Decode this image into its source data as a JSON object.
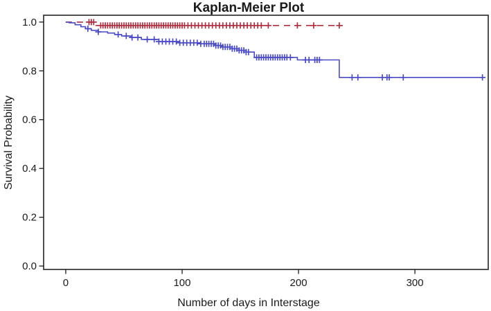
{
  "chart": {
    "title": "Kaplan-Meier Plot",
    "xlabel": "Number of days in Interstage",
    "ylabel": "Survival Probability"
  },
  "chart_data": {
    "type": "line",
    "subtype": "kaplan_meier_step",
    "title": "Kaplan-Meier Plot",
    "xlabel": "Number of days in Interstage",
    "ylabel": "Survival Probability",
    "xlim": [
      -19,
      363
    ],
    "ylim": [
      -0.014,
      1.028
    ],
    "xticks": {
      "values": [
        0,
        100,
        200,
        300
      ],
      "labels": [
        "0",
        "100",
        "200",
        "300"
      ]
    },
    "yticks": {
      "values": [
        0.0,
        0.2,
        0.4,
        0.6,
        0.8,
        1.0
      ],
      "labels": [
        "0.0",
        "0.2",
        "0.4",
        "0.6",
        "0.8",
        "1.0"
      ]
    },
    "grid": false,
    "frame": true,
    "legend": "none",
    "frame_color": "#3c3c3c",
    "text_color": "#1a1a1a",
    "background_color": "#ffffff",
    "series": [
      {
        "name": "upper-red-dashed",
        "color": "#b02c3e",
        "line_style": "dashed",
        "censor_marker": "plus",
        "steps": [
          [
            0,
            1.0
          ],
          [
            26,
            0.986
          ],
          [
            238,
            0.986
          ]
        ],
        "censor_days": [
          20,
          22,
          24,
          30,
          32,
          34,
          36,
          38,
          40,
          42,
          44,
          46,
          48,
          50,
          52,
          54,
          56,
          58,
          60,
          62,
          64,
          66,
          68,
          70,
          72,
          74,
          76,
          78,
          80,
          82,
          84,
          86,
          88,
          90,
          92,
          94,
          96,
          98,
          100,
          102,
          105,
          108,
          111,
          114,
          117,
          120,
          123,
          126,
          129,
          132,
          135,
          138,
          141,
          144,
          147,
          150,
          153,
          156,
          159,
          162,
          165,
          168,
          174,
          199,
          213,
          235
        ]
      },
      {
        "name": "lower-blue-solid",
        "color": "#4a4ac9",
        "line_style": "solid",
        "censor_marker": "plus",
        "steps": [
          [
            0,
            1.0
          ],
          [
            3,
            0.997
          ],
          [
            8,
            0.989
          ],
          [
            13,
            0.981
          ],
          [
            17,
            0.973
          ],
          [
            22,
            0.966
          ],
          [
            28,
            0.96
          ],
          [
            36,
            0.955
          ],
          [
            42,
            0.949
          ],
          [
            48,
            0.943
          ],
          [
            56,
            0.937
          ],
          [
            65,
            0.929
          ],
          [
            80,
            0.92
          ],
          [
            98,
            0.915
          ],
          [
            116,
            0.911
          ],
          [
            128,
            0.904
          ],
          [
            134,
            0.898
          ],
          [
            143,
            0.891
          ],
          [
            149,
            0.884
          ],
          [
            155,
            0.877
          ],
          [
            162,
            0.855
          ],
          [
            199,
            0.845
          ],
          [
            235,
            0.773
          ],
          [
            360,
            0.773
          ]
        ],
        "censor_days": [
          19,
          28,
          45,
          52,
          57,
          62,
          70,
          76,
          80,
          83,
          86,
          89,
          92,
          95,
          98,
          101,
          104,
          107,
          110,
          113,
          116,
          119,
          121,
          123,
          125,
          127,
          129,
          131,
          133,
          135,
          137,
          139,
          141,
          143,
          145,
          147,
          149,
          151,
          153,
          155,
          157,
          164,
          166,
          168,
          170,
          172,
          174,
          176,
          178,
          180,
          182,
          184,
          186,
          188,
          190,
          193,
          206,
          209,
          214,
          216,
          218,
          246,
          251,
          272,
          276,
          278,
          290,
          358
        ]
      }
    ]
  }
}
